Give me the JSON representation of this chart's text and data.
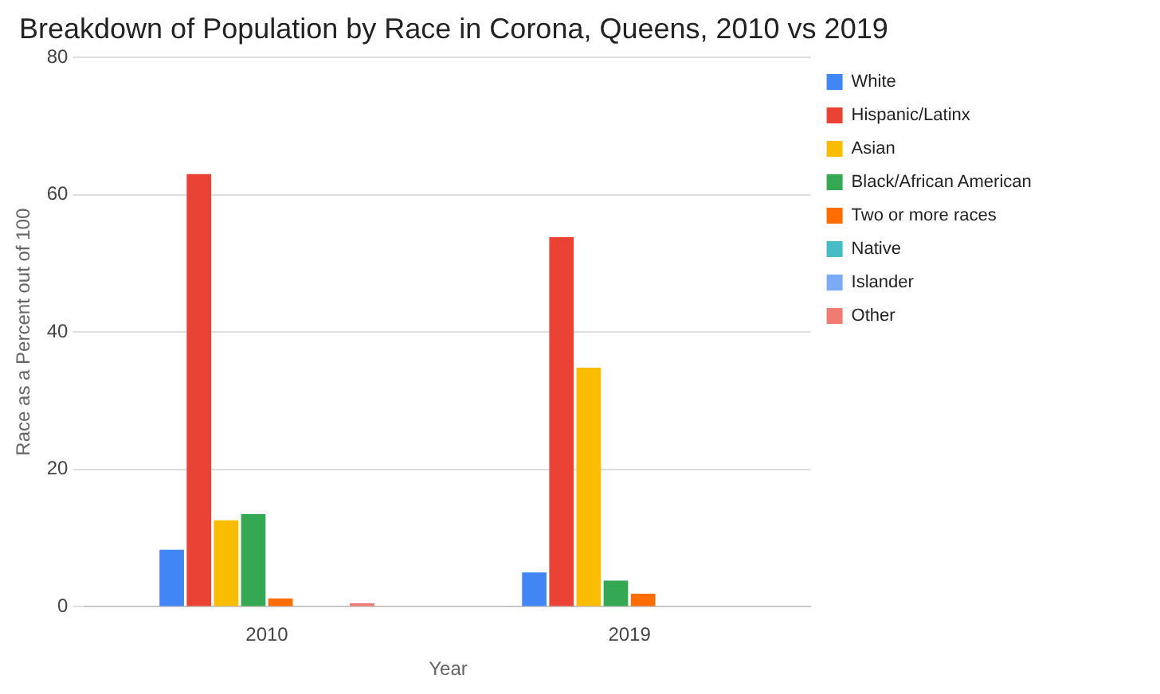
{
  "chart_data": {
    "type": "bar",
    "title": "Breakdown of Population by Race in Corona, Queens, 2010 vs 2019",
    "xlabel": "Year",
    "ylabel": "Race as a Percent out of 100",
    "categories": [
      "2010",
      "2019"
    ],
    "series": [
      {
        "name": "White",
        "color": "#4285f4",
        "values": [
          8.3,
          5.0
        ]
      },
      {
        "name": "Hispanic/Latinx",
        "color": "#ea4335",
        "values": [
          63.0,
          53.8
        ]
      },
      {
        "name": "Asian",
        "color": "#fbbc04",
        "values": [
          12.6,
          34.8
        ]
      },
      {
        "name": "Black/African American",
        "color": "#34a853",
        "values": [
          13.5,
          3.8
        ]
      },
      {
        "name": "Two or more races",
        "color": "#ff6d01",
        "values": [
          1.2,
          1.9
        ]
      },
      {
        "name": "Native",
        "color": "#46bdc6",
        "values": [
          null,
          0
        ]
      },
      {
        "name": "Islander",
        "color": "#7baaf7",
        "values": [
          0,
          0
        ]
      },
      {
        "name": "Other",
        "color": "#f07b72",
        "values": [
          0.5,
          0
        ]
      }
    ],
    "ylim": [
      0,
      80
    ],
    "yticks": [
      0,
      20,
      40,
      60,
      80
    ],
    "grid": "y",
    "legend": "top right"
  }
}
